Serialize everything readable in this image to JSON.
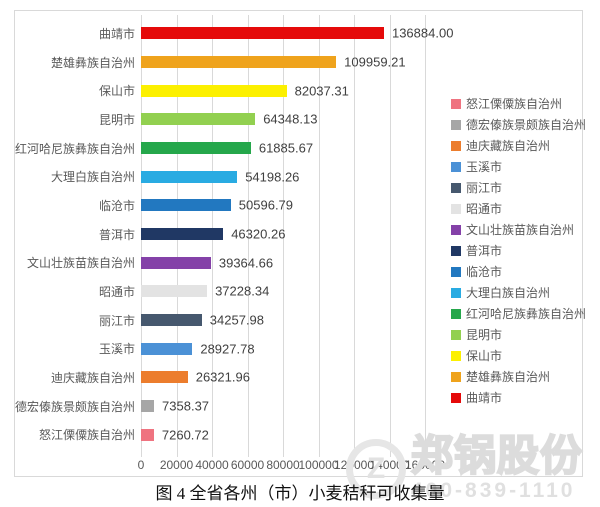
{
  "caption": "图 4 全省各州（市）小麦秸秆可收集量",
  "watermark": {
    "brand": "郑锅股份",
    "phone": "400-839-1110"
  },
  "chart_data": {
    "type": "bar",
    "orientation": "horizontal",
    "title": "图 4 全省各州（市）小麦秸秆可收集量",
    "xlabel": "",
    "ylabel": "",
    "xlim": [
      0,
      160000
    ],
    "grid": true,
    "grid_color": "#d9d9d9",
    "legend_position": "right",
    "categories": [
      "曲靖市",
      "楚雄彝族自治州",
      "保山市",
      "昆明市",
      "红河哈尼族彝族自治州",
      "大理白族自治州",
      "临沧市",
      "普洱市",
      "文山壮族苗族自治州",
      "昭通市",
      "丽江市",
      "玉溪市",
      "迪庆藏族自治州",
      "德宏傣族景颇族自治州",
      "怒江傈僳族自治州"
    ],
    "values": [
      136884.0,
      109959.21,
      82037.31,
      64348.13,
      61885.67,
      54198.26,
      50596.79,
      46320.26,
      39364.66,
      37228.34,
      34257.98,
      28927.78,
      26321.96,
      7358.37,
      7260.72
    ],
    "value_labels": [
      "136884.00",
      "109959.21",
      "82037.31",
      "64348.13",
      "61885.67",
      "54198.26",
      "50596.79",
      "46320.26",
      "39364.66",
      "37228.34",
      "34257.98",
      "28927.78",
      "26321.96",
      "7358.37",
      "7260.72"
    ],
    "colors": [
      "#e50a0a",
      "#efa31c",
      "#fcf000",
      "#92d050",
      "#25a74b",
      "#29abe2",
      "#2278c0",
      "#203864",
      "#8441a8",
      "#e3e3e3",
      "#46586e",
      "#4b91d6",
      "#ec7d2d",
      "#a6a6a6",
      "#ef7380"
    ],
    "x_ticks": [
      0,
      20000,
      40000,
      60000,
      80000,
      100000,
      120000,
      140000,
      160000
    ],
    "x_tick_labels": [
      "0",
      "20000",
      "40000",
      "60000",
      "80000",
      "100000",
      "120000",
      "140000",
      "160000"
    ],
    "legend": [
      {
        "label": "怒江傈僳族自治州",
        "color": "#ef7380"
      },
      {
        "label": "德宏傣族景颇族自治州",
        "color": "#a6a6a6"
      },
      {
        "label": "迪庆藏族自治州",
        "color": "#ec7d2d"
      },
      {
        "label": "玉溪市",
        "color": "#4b91d6"
      },
      {
        "label": "丽江市",
        "color": "#46586e"
      },
      {
        "label": "昭通市",
        "color": "#e3e3e3"
      },
      {
        "label": "文山壮族苗族自治州",
        "color": "#8441a8"
      },
      {
        "label": "普洱市",
        "color": "#203864"
      },
      {
        "label": "临沧市",
        "color": "#2278c0"
      },
      {
        "label": "大理白族自治州",
        "color": "#29abe2"
      },
      {
        "label": "红河哈尼族彝族自治州",
        "color": "#25a74b"
      },
      {
        "label": "昆明市",
        "color": "#92d050"
      },
      {
        "label": "保山市",
        "color": "#fcf000"
      },
      {
        "label": "楚雄彝族自治州",
        "color": "#efa31c"
      },
      {
        "label": "曲靖市",
        "color": "#e50a0a"
      }
    ]
  }
}
